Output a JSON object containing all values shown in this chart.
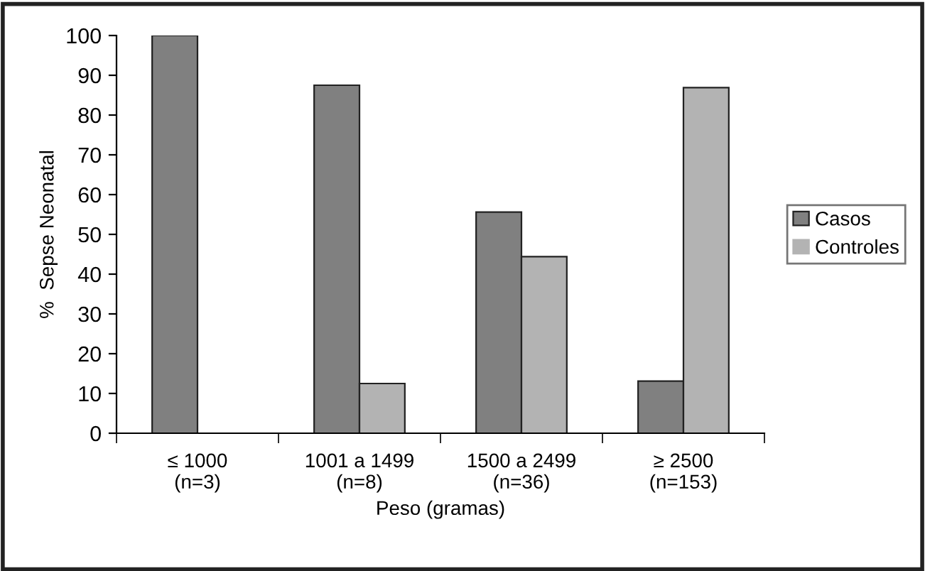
{
  "chart_data": {
    "type": "bar",
    "xlabel": "Peso (gramas)",
    "ylabel": "%  Sepse Neonatal",
    "categories": [
      "≤ 1000\n(n=3)",
      "1001 a 1499\n(n=8)",
      "1500 a 2499\n(n=36)",
      "≥ 2500\n(n=153)"
    ],
    "series": [
      {
        "name": "Casos",
        "color": "#808080",
        "values": [
          100,
          87.5,
          55.6,
          13.1
        ]
      },
      {
        "name": "Controles",
        "color": "#b3b3b3",
        "values": [
          0,
          12.5,
          44.4,
          86.9
        ]
      }
    ],
    "ylim": [
      0,
      100
    ],
    "yticks": [
      0,
      10,
      20,
      30,
      40,
      50,
      60,
      70,
      80,
      90,
      100
    ],
    "grid": false,
    "legend": "right"
  }
}
